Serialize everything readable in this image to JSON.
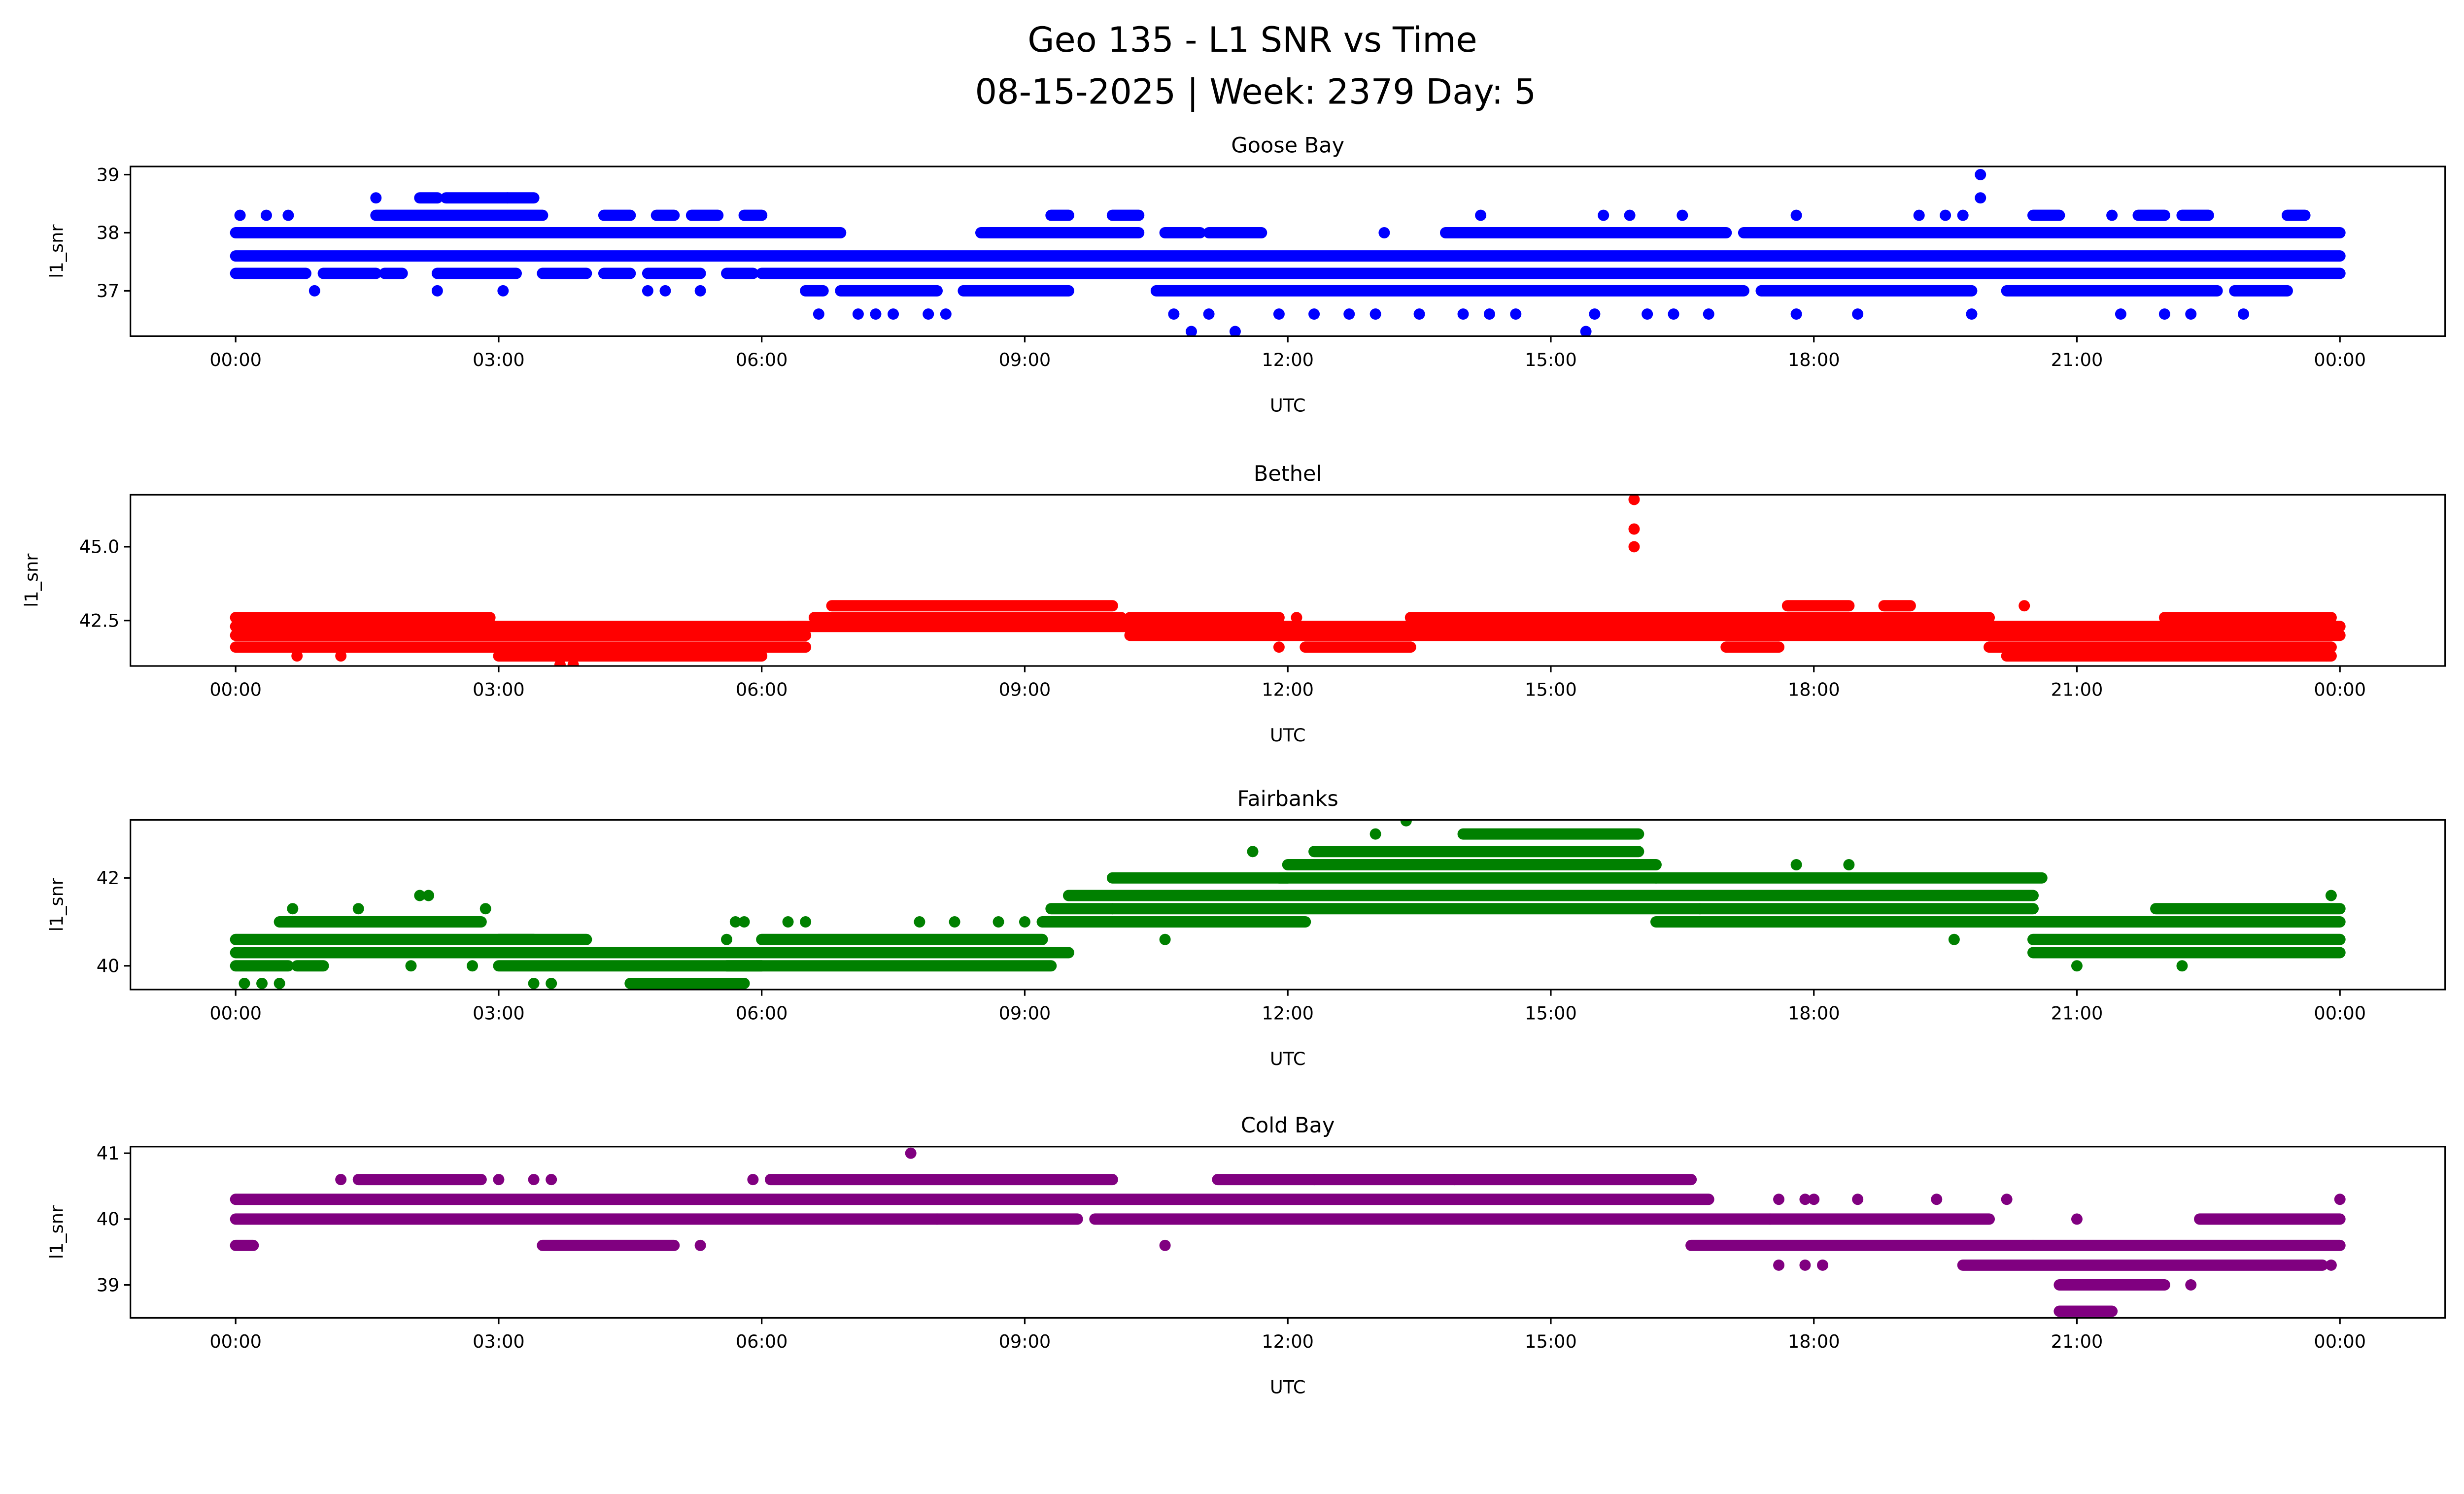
{
  "chart_data": {
    "type": "scatter",
    "title": "Geo 135 - L1 SNR vs Time",
    "subtitle": "08-15-2025 | Week: 2379 Day: 5",
    "xlabel": "UTC",
    "xlim": [
      -1.2,
      25.2
    ],
    "xticks": [
      {
        "value": 0,
        "label": "00:00"
      },
      {
        "value": 3,
        "label": "03:00"
      },
      {
        "value": 6,
        "label": "06:00"
      },
      {
        "value": 9,
        "label": "09:00"
      },
      {
        "value": 12,
        "label": "12:00"
      },
      {
        "value": 15,
        "label": "15:00"
      },
      {
        "value": 18,
        "label": "18:00"
      },
      {
        "value": 21,
        "label": "21:00"
      },
      {
        "value": 24,
        "label": "00:00"
      }
    ],
    "panels": [
      {
        "title": "Goose Bay",
        "ylabel": "l1_snr",
        "color": "#0000ff",
        "ylim": [
          36.22,
          39.14
        ],
        "yticks": [
          {
            "value": 37,
            "label": "37"
          },
          {
            "value": 38,
            "label": "38"
          },
          {
            "value": 39,
            "label": "39"
          }
        ],
        "bands": [
          [
            0,
            24,
            37.6
          ],
          [
            0,
            6.8,
            38.0
          ],
          [
            6.5,
            6.9,
            38.0
          ],
          [
            8.5,
            10.3,
            38.0
          ],
          [
            10.6,
            11.0,
            38.0
          ],
          [
            11.1,
            11.7,
            38.0
          ],
          [
            13.8,
            17.0,
            38.0
          ],
          [
            17.2,
            24,
            38.0
          ],
          [
            0,
            0.8,
            37.3
          ],
          [
            1.0,
            1.6,
            37.3
          ],
          [
            1.7,
            1.9,
            37.3
          ],
          [
            2.3,
            3.2,
            37.3
          ],
          [
            3.5,
            4.0,
            37.3
          ],
          [
            4.2,
            4.5,
            37.3
          ],
          [
            4.7,
            5.3,
            37.3
          ],
          [
            5.6,
            5.9,
            37.3
          ],
          [
            6.0,
            24,
            37.3
          ],
          [
            6.5,
            6.7,
            37.0
          ],
          [
            6.9,
            8.0,
            37.0
          ],
          [
            8.3,
            9.5,
            37.0
          ],
          [
            10.5,
            17.2,
            37.0
          ],
          [
            17.4,
            19.8,
            37.0
          ],
          [
            20.2,
            22.6,
            37.0
          ],
          [
            22.8,
            23.4,
            37.0
          ],
          [
            1.6,
            3.5,
            38.3
          ],
          [
            4.2,
            4.5,
            38.3
          ],
          [
            4.8,
            5.0,
            38.3
          ],
          [
            5.2,
            5.5,
            38.3
          ],
          [
            5.8,
            6.0,
            38.3
          ],
          [
            9.3,
            9.5,
            38.3
          ],
          [
            10.0,
            10.3,
            38.3
          ],
          [
            20.5,
            20.8,
            38.3
          ],
          [
            21.7,
            22.0,
            38.3
          ],
          [
            22.2,
            22.5,
            38.3
          ],
          [
            23.4,
            23.6,
            38.3
          ],
          [
            2.1,
            2.3,
            38.6
          ],
          [
            2.4,
            3.1,
            38.6
          ],
          [
            3.1,
            3.4,
            38.6
          ]
        ],
        "points": [
          [
            0.05,
            38.3
          ],
          [
            0.35,
            38.3
          ],
          [
            0.6,
            38.3
          ],
          [
            0.9,
            37.0
          ],
          [
            1.6,
            38.6
          ],
          [
            2.3,
            37.0
          ],
          [
            3.05,
            37.0
          ],
          [
            4.7,
            37.0
          ],
          [
            4.9,
            37.0
          ],
          [
            5.3,
            37.0
          ],
          [
            6.65,
            36.6
          ],
          [
            7.1,
            36.6
          ],
          [
            7.3,
            36.6
          ],
          [
            7.5,
            36.6
          ],
          [
            7.9,
            36.6
          ],
          [
            8.1,
            36.6
          ],
          [
            10.7,
            36.6
          ],
          [
            10.9,
            36.3
          ],
          [
            11.1,
            36.6
          ],
          [
            11.4,
            36.3
          ],
          [
            11.9,
            36.6
          ],
          [
            12.3,
            36.6
          ],
          [
            12.7,
            36.6
          ],
          [
            13.0,
            36.6
          ],
          [
            13.1,
            38.0
          ],
          [
            13.5,
            36.6
          ],
          [
            14.0,
            36.6
          ],
          [
            14.2,
            38.3
          ],
          [
            14.3,
            36.6
          ],
          [
            14.6,
            36.6
          ],
          [
            15.4,
            36.3
          ],
          [
            15.5,
            36.6
          ],
          [
            15.6,
            38.3
          ],
          [
            15.9,
            38.3
          ],
          [
            16.1,
            36.6
          ],
          [
            16.4,
            36.6
          ],
          [
            16.5,
            38.3
          ],
          [
            16.8,
            36.6
          ],
          [
            17.8,
            38.3
          ],
          [
            17.8,
            36.6
          ],
          [
            18.5,
            36.6
          ],
          [
            19.2,
            38.3
          ],
          [
            19.5,
            38.3
          ],
          [
            19.7,
            38.3
          ],
          [
            19.8,
            36.6
          ],
          [
            19.9,
            38.6
          ],
          [
            19.9,
            39.0
          ],
          [
            21.4,
            38.3
          ],
          [
            21.5,
            36.6
          ],
          [
            22.0,
            36.6
          ],
          [
            22.3,
            36.6
          ],
          [
            22.9,
            36.6
          ]
        ]
      },
      {
        "title": "Bethel",
        "ylabel": "l1_snr",
        "color": "#ff0000",
        "ylim": [
          40.96,
          46.76
        ],
        "yticks": [
          {
            "value": 42.5,
            "label": "42.5"
          },
          {
            "value": 45.0,
            "label": "45.0"
          }
        ],
        "bands": [
          [
            0,
            6.5,
            42.3
          ],
          [
            0,
            6.5,
            42.0
          ],
          [
            0,
            6.5,
            41.6
          ],
          [
            0,
            2.9,
            42.6
          ],
          [
            3.0,
            6.0,
            41.3
          ],
          [
            6.3,
            10.2,
            42.3
          ],
          [
            6.6,
            10.1,
            42.6
          ],
          [
            6.8,
            10.0,
            43.0
          ],
          [
            10.2,
            24,
            42.3
          ],
          [
            10.2,
            24,
            42.0
          ],
          [
            10.2,
            11.9,
            42.6
          ],
          [
            13.4,
            17.0,
            42.6
          ],
          [
            12.2,
            13.4,
            41.6
          ],
          [
            17.0,
            20.0,
            42.6
          ],
          [
            17.7,
            18.4,
            43.0
          ],
          [
            18.8,
            19.1,
            43.0
          ],
          [
            17.0,
            17.6,
            41.6
          ],
          [
            20.0,
            23.9,
            41.6
          ],
          [
            20.2,
            23.9,
            41.3
          ],
          [
            22.0,
            23.9,
            42.6
          ]
        ],
        "points": [
          [
            0.7,
            41.3
          ],
          [
            1.2,
            41.3
          ],
          [
            3.7,
            41.0
          ],
          [
            3.85,
            41.0
          ],
          [
            11.9,
            41.6
          ],
          [
            15.95,
            45.0
          ],
          [
            15.95,
            45.6
          ],
          [
            15.95,
            46.6
          ],
          [
            20.4,
            43.0
          ],
          [
            23.4,
            41.3
          ],
          [
            23.85,
            41.3
          ],
          [
            12.1,
            42.6
          ]
        ]
      },
      {
        "title": "Fairbanks",
        "ylabel": "l1_snr",
        "color": "#008000",
        "ylim": [
          39.46,
          43.32
        ],
        "yticks": [
          {
            "value": 40,
            "label": "40"
          },
          {
            "value": 42,
            "label": "42"
          }
        ],
        "bands": [
          [
            0,
            3.4,
            40.3
          ],
          [
            0,
            3.4,
            40.6
          ],
          [
            0.5,
            2.8,
            41.0
          ],
          [
            0,
            0.6,
            40.0
          ],
          [
            0.7,
            1.0,
            40.0
          ],
          [
            3.0,
            6.0,
            40.0
          ],
          [
            3.0,
            5.8,
            40.3
          ],
          [
            3.0,
            4.0,
            40.6
          ],
          [
            4.5,
            5.8,
            39.6
          ],
          [
            5.6,
            9.3,
            40.0
          ],
          [
            5.6,
            9.5,
            40.3
          ],
          [
            6.0,
            9.2,
            40.6
          ],
          [
            9.2,
            10.0,
            41.0
          ],
          [
            9.3,
            10.0,
            41.3
          ],
          [
            9.5,
            10.1,
            41.6
          ],
          [
            10.0,
            20.5,
            41.6
          ],
          [
            10.0,
            20.5,
            41.3
          ],
          [
            10.0,
            12.2,
            41.0
          ],
          [
            10.0,
            12.0,
            42.0
          ],
          [
            11.9,
            16.2,
            42.0
          ],
          [
            12.0,
            16.2,
            42.3
          ],
          [
            12.3,
            16.0,
            42.6
          ],
          [
            14.0,
            16.0,
            43.0
          ],
          [
            16.2,
            20.6,
            42.0
          ],
          [
            16.2,
            20.5,
            41.0
          ],
          [
            20.5,
            24,
            40.6
          ],
          [
            20.5,
            24,
            40.3
          ],
          [
            20.5,
            24,
            41.0
          ],
          [
            21.9,
            24,
            41.3
          ]
        ],
        "points": [
          [
            0.1,
            39.6
          ],
          [
            0.3,
            39.6
          ],
          [
            0.5,
            39.6
          ],
          [
            0.65,
            41.3
          ],
          [
            1.4,
            41.3
          ],
          [
            2.1,
            41.6
          ],
          [
            2.2,
            41.6
          ],
          [
            2.0,
            40.0
          ],
          [
            2.7,
            40.0
          ],
          [
            2.85,
            41.3
          ],
          [
            3.4,
            39.6
          ],
          [
            3.6,
            39.6
          ],
          [
            5.6,
            40.6
          ],
          [
            5.7,
            41.0
          ],
          [
            5.8,
            41.0
          ],
          [
            6.3,
            41.0
          ],
          [
            6.5,
            41.0
          ],
          [
            7.8,
            41.0
          ],
          [
            8.2,
            41.0
          ],
          [
            8.7,
            41.0
          ],
          [
            9.0,
            41.0
          ],
          [
            10.6,
            40.6
          ],
          [
            11.6,
            42.6
          ],
          [
            13.0,
            43.0
          ],
          [
            13.35,
            43.3
          ],
          [
            12.7,
            41.6
          ],
          [
            13.6,
            41.6
          ],
          [
            15.0,
            41.6
          ],
          [
            16.7,
            41.3
          ],
          [
            17.5,
            41.0
          ],
          [
            18.4,
            42.3
          ],
          [
            17.8,
            42.3
          ],
          [
            19.6,
            40.6
          ],
          [
            21.0,
            40.0
          ],
          [
            22.2,
            40.0
          ],
          [
            23.9,
            41.6
          ]
        ]
      },
      {
        "title": "Cold Bay",
        "ylabel": "l1_snr",
        "color": "#800080",
        "ylim": [
          38.5,
          41.1
        ],
        "yticks": [
          {
            "value": 39,
            "label": "39"
          },
          {
            "value": 40,
            "label": "40"
          },
          {
            "value": 41,
            "label": "41"
          }
        ],
        "bands": [
          [
            0,
            16.8,
            40.3
          ],
          [
            0,
            8.0,
            40.0
          ],
          [
            8.0,
            9.6,
            40.0
          ],
          [
            9.8,
            17.5,
            40.0
          ],
          [
            17.5,
            20.0,
            40.0
          ],
          [
            1.4,
            2.8,
            40.6
          ],
          [
            6.1,
            10.0,
            40.6
          ],
          [
            11.2,
            16.6,
            40.6
          ],
          [
            0,
            0.2,
            39.6
          ],
          [
            3.5,
            5.0,
            39.6
          ],
          [
            16.6,
            20.5,
            39.6
          ],
          [
            20.5,
            24,
            39.6
          ],
          [
            19.7,
            23.8,
            39.3
          ],
          [
            20.8,
            22.0,
            39.0
          ],
          [
            20.8,
            21.4,
            38.6
          ],
          [
            22.4,
            24,
            40.0
          ]
        ],
        "points": [
          [
            1.2,
            40.6
          ],
          [
            3.0,
            40.6
          ],
          [
            3.4,
            40.6
          ],
          [
            3.6,
            40.6
          ],
          [
            5.3,
            39.6
          ],
          [
            5.9,
            40.6
          ],
          [
            7.7,
            41.0
          ],
          [
            10.6,
            39.6
          ],
          [
            12.3,
            40.6
          ],
          [
            13.9,
            40.6
          ],
          [
            17.6,
            40.3
          ],
          [
            17.9,
            40.3
          ],
          [
            18.0,
            40.3
          ],
          [
            17.6,
            39.3
          ],
          [
            17.9,
            39.3
          ],
          [
            18.1,
            39.3
          ],
          [
            18.5,
            40.3
          ],
          [
            19.4,
            40.3
          ],
          [
            20.2,
            40.3
          ],
          [
            21.0,
            40.0
          ],
          [
            22.3,
            39.0
          ],
          [
            23.9,
            39.3
          ],
          [
            24.0,
            40.3
          ]
        ]
      }
    ]
  }
}
